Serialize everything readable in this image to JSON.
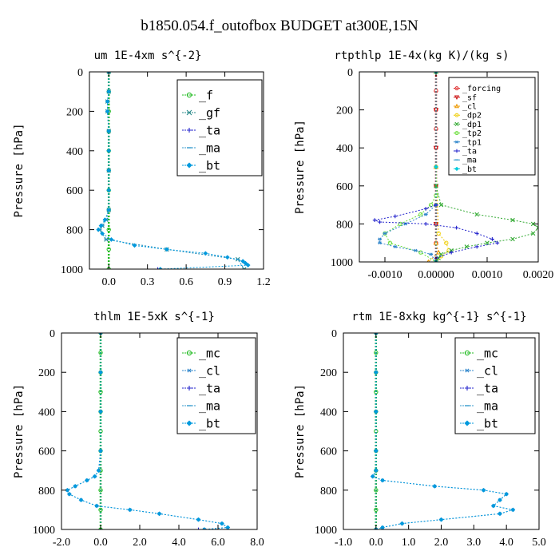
{
  "figure": {
    "title": "b1850.054.f_outofbox  BUDGET at300E,15N"
  },
  "chart_data": [
    {
      "type": "line",
      "title": "um  1E-4xm s^{-2}",
      "xlabel": "",
      "ylabel": "Pressure [hPa]",
      "xlim": [
        -0.15,
        1.2
      ],
      "ylim": [
        1000,
        0
      ],
      "xticks": [
        0.0,
        0.3,
        0.6,
        0.9,
        1.2
      ],
      "xtick_labels": [
        "0.0",
        "0.3",
        "0.6",
        "0.9",
        "1.2"
      ],
      "yticks": [
        0,
        200,
        400,
        600,
        800,
        1000
      ],
      "ytick_labels": [
        "0",
        "200",
        "400",
        "600",
        "800",
        "1000"
      ],
      "legend": {
        "placement": "top-right",
        "font_size": 15
      },
      "series": [
        {
          "name": "_f",
          "color": "#22bb22",
          "marker": "circle",
          "y": [
            0,
            100,
            200,
            300,
            400,
            500,
            600,
            700,
            800,
            900,
            1000
          ],
          "x": [
            0,
            0,
            0,
            0,
            0,
            0,
            0,
            0,
            0,
            0,
            0
          ]
        },
        {
          "name": "_gf",
          "color": "#2a8a8a",
          "marker": "x",
          "y": [
            0,
            100,
            150,
            200,
            300,
            500,
            700,
            750,
            780,
            800,
            850,
            900,
            950,
            1000
          ],
          "x": [
            0,
            0,
            -0.01,
            -0.01,
            0,
            0,
            0,
            -0.02,
            -0.05,
            -0.07,
            -0.02,
            0.45,
            1.0,
            1.05
          ]
        },
        {
          "name": "_ta",
          "color": "#2222cc",
          "marker": "plus",
          "y": [
            1000
          ],
          "x": [
            0.38
          ]
        },
        {
          "name": "_ma",
          "color": "#3399cc",
          "marker": "dash",
          "y": [
            0,
            100,
            150,
            200,
            300,
            500,
            700,
            750,
            780,
            800,
            850,
            900,
            950,
            1000
          ],
          "x": [
            0,
            0,
            -0.01,
            -0.01,
            0,
            0,
            0,
            -0.02,
            -0.05,
            -0.07,
            -0.02,
            0.45,
            1.0,
            1.05
          ]
        },
        {
          "name": "_bt",
          "color": "#0099dd",
          "marker": "diamond",
          "y": [
            0,
            100,
            150,
            200,
            300,
            400,
            500,
            600,
            700,
            750,
            780,
            800,
            820,
            850,
            880,
            900,
            920,
            940,
            960,
            970,
            980,
            1000
          ],
          "x": [
            0,
            0,
            -0.01,
            -0.01,
            0,
            0,
            0,
            0,
            0,
            -0.03,
            -0.06,
            -0.08,
            -0.05,
            0.02,
            0.2,
            0.45,
            0.75,
            0.92,
            1.04,
            1.06,
            1.08,
            0.4
          ]
        }
      ]
    },
    {
      "type": "line",
      "title": "rtpthlp  1E-4x(kg K)/(kg s)",
      "xlabel": "",
      "ylabel": "Pressure [hPa]",
      "xlim": [
        -0.0015,
        0.002
      ],
      "ylim": [
        1000,
        0
      ],
      "xticks": [
        -0.001,
        0.0,
        0.001,
        0.002
      ],
      "xtick_labels": [
        "-0.0010",
        "0.00000",
        "0.0010",
        "0.0020"
      ],
      "yticks": [
        0,
        200,
        400,
        600,
        800,
        1000
      ],
      "ytick_labels": [
        "0",
        "200",
        "400",
        "600",
        "800",
        "1000"
      ],
      "legend": {
        "placement": "top-right",
        "font_size": 10
      },
      "series": [
        {
          "name": "_forcing",
          "color": "#dd2222",
          "marker": "circle",
          "y": [
            0,
            100,
            200,
            300,
            400,
            500,
            600,
            700,
            800,
            900,
            1000
          ],
          "x": [
            0,
            0,
            0,
            0,
            0,
            0,
            0,
            0,
            0,
            0,
            0
          ]
        },
        {
          "name": "_sf",
          "color": "#cc1111",
          "marker": "triangle-down",
          "y": [
            0,
            200,
            400,
            600,
            800,
            1000
          ],
          "x": [
            0,
            0,
            0,
            0,
            0,
            0
          ]
        },
        {
          "name": "_cl",
          "color": "#ee9900",
          "marker": "triangle",
          "y": [
            0,
            500,
            900,
            950,
            1000
          ],
          "x": [
            0,
            0,
            0,
            5e-05,
            -0.00015
          ]
        },
        {
          "name": "_dp2",
          "color": "#eecc00",
          "marker": "circle",
          "y": [
            0,
            500,
            850,
            900,
            940,
            970,
            1000
          ],
          "x": [
            0,
            0,
            5e-05,
            0.0002,
            0.00025,
            0.0001,
            0
          ]
        },
        {
          "name": "_dp1",
          "color": "#33aa33",
          "marker": "x",
          "y": [
            0,
            600,
            700,
            750,
            780,
            800,
            820,
            850,
            880,
            900,
            920,
            940,
            960,
            980,
            1000
          ],
          "x": [
            0,
            0,
            0.0001,
            0.0008,
            0.0015,
            0.0019,
            0.002,
            0.0019,
            0.0015,
            0.001,
            0.0006,
            0.0003,
            0.0001,
            5e-05,
            0
          ]
        },
        {
          "name": "_tp2",
          "color": "#66dd33",
          "marker": "circle",
          "y": [
            0,
            650,
            700,
            750,
            800,
            850,
            900,
            950,
            1000
          ],
          "x": [
            0,
            0,
            -0.0001,
            -0.0003,
            -0.0007,
            -0.001,
            -0.0009,
            -0.0003,
            0
          ]
        },
        {
          "name": "_tp1",
          "color": "#3388cc",
          "marker": "asterisk",
          "y": [
            0,
            700,
            750,
            800,
            850,
            880,
            900,
            920,
            940,
            960,
            1000
          ],
          "x": [
            0,
            0,
            -0.0002,
            -0.0006,
            -0.001,
            -0.0011,
            -0.0011,
            -0.0008,
            -0.0004,
            -0.0001,
            0
          ]
        },
        {
          "name": "_ta",
          "color": "#2222cc",
          "marker": "plus",
          "y": [
            0,
            700,
            720,
            760,
            780,
            790,
            800,
            820,
            850,
            880,
            900,
            920,
            950,
            980,
            1000
          ],
          "x": [
            0,
            0,
            -0.0002,
            -0.0008,
            -0.0012,
            -0.0011,
            -0.0002,
            0.0004,
            0.0008,
            0.0011,
            0.0012,
            0.0008,
            0.0003,
            0,
            0
          ]
        },
        {
          "name": "_ma",
          "color": "#3399cc",
          "marker": "dash",
          "y": [
            0,
            1000
          ],
          "x": [
            0,
            0
          ]
        },
        {
          "name": "_bt",
          "color": "#00ccdd",
          "marker": "diamond",
          "y": [
            0,
            500,
            1000
          ],
          "x": [
            0,
            0,
            0
          ]
        }
      ]
    },
    {
      "type": "line",
      "title": "thlm  1E-5xK s^{-1}",
      "xlabel": "",
      "ylabel": "Pressure [hPa]",
      "xlim": [
        -2.0,
        8.0
      ],
      "ylim": [
        1000,
        0
      ],
      "xticks": [
        -2.0,
        0.0,
        2.0,
        4.0,
        6.0,
        8.0
      ],
      "xtick_labels": [
        "-2.0",
        "0.0",
        "2.0",
        "4.0",
        "6.0",
        "8.0"
      ],
      "yticks": [
        0,
        200,
        400,
        600,
        800,
        1000
      ],
      "ytick_labels": [
        "0",
        "200",
        "400",
        "600",
        "800",
        "1000"
      ],
      "legend": {
        "placement": "top-right",
        "font_size": 15
      },
      "series": [
        {
          "name": "_mc",
          "color": "#22bb22",
          "marker": "circle",
          "y": [
            0,
            100,
            200,
            300,
            400,
            500,
            600,
            700,
            800,
            900,
            1000
          ],
          "x": [
            0,
            0,
            0,
            0,
            0,
            0,
            0,
            0,
            0,
            0,
            0
          ]
        },
        {
          "name": "_cl",
          "color": "#3388cc",
          "marker": "asterisk",
          "y": [
            0,
            200,
            400,
            600,
            700,
            730,
            750,
            780,
            800,
            820,
            850,
            880,
            900,
            920,
            950,
            970,
            990,
            1000
          ],
          "x": [
            0,
            0,
            0,
            0,
            -0.1,
            -0.3,
            -0.7,
            -1.3,
            -1.7,
            -1.6,
            -1.0,
            -0.2,
            1.5,
            3.0,
            5.0,
            6.2,
            6.5,
            5.3
          ]
        },
        {
          "name": "_ta",
          "color": "#2222cc",
          "marker": "plus",
          "y": [
            1000
          ],
          "x": [
            5.0
          ]
        },
        {
          "name": "_ma",
          "color": "#3399cc",
          "marker": "dash",
          "y": [
            0,
            1000
          ],
          "x": [
            0,
            0
          ]
        },
        {
          "name": "_bt",
          "color": "#0099dd",
          "marker": "diamond",
          "y": [
            0,
            200,
            400,
            600,
            700,
            730,
            750,
            780,
            800,
            820,
            850,
            880,
            900,
            920,
            950,
            970,
            990,
            1000
          ],
          "x": [
            0,
            0,
            0,
            0,
            -0.1,
            -0.3,
            -0.7,
            -1.3,
            -1.7,
            -1.6,
            -1.0,
            -0.2,
            1.5,
            3.0,
            5.0,
            6.2,
            6.5,
            5.3
          ]
        }
      ]
    },
    {
      "type": "line",
      "title": "rtm  1E-8xkg kg^{-1} s^{-1}",
      "xlabel": "",
      "ylabel": "Pressure [hPa]",
      "xlim": [
        -1.0,
        5.0
      ],
      "ylim": [
        1000,
        0
      ],
      "xticks": [
        -1.0,
        0.0,
        1.0,
        2.0,
        3.0,
        4.0,
        5.0
      ],
      "xtick_labels": [
        "-1.0",
        "0.0",
        "1.0",
        "2.0",
        "3.0",
        "4.0",
        "5.0"
      ],
      "yticks": [
        0,
        200,
        400,
        600,
        800,
        1000
      ],
      "ytick_labels": [
        "0",
        "200",
        "400",
        "600",
        "800",
        "1000"
      ],
      "legend": {
        "placement": "top-right",
        "font_size": 15
      },
      "series": [
        {
          "name": "_mc",
          "color": "#22bb22",
          "marker": "circle",
          "y": [
            0,
            100,
            200,
            300,
            400,
            500,
            600,
            700,
            800,
            900,
            1000
          ],
          "x": [
            0,
            0,
            0,
            0,
            0,
            0,
            0,
            0,
            0,
            0,
            0
          ]
        },
        {
          "name": "_cl",
          "color": "#3388cc",
          "marker": "asterisk",
          "y": [
            0,
            200,
            400,
            600,
            700,
            730,
            750,
            780,
            800,
            820,
            850,
            880,
            900,
            920,
            950,
            970,
            990,
            1000
          ],
          "x": [
            0,
            0,
            0,
            0,
            0,
            -0.1,
            0.2,
            1.8,
            3.3,
            4.0,
            3.8,
            3.6,
            4.2,
            3.8,
            2.0,
            0.8,
            0.2,
            0
          ]
        },
        {
          "name": "_ta",
          "color": "#2222cc",
          "marker": "plus",
          "y": [
            1000
          ],
          "x": [
            0
          ]
        },
        {
          "name": "_ma",
          "color": "#3399cc",
          "marker": "dash",
          "y": [
            0,
            1000
          ],
          "x": [
            0,
            0
          ]
        },
        {
          "name": "_bt",
          "color": "#0099dd",
          "marker": "diamond",
          "y": [
            0,
            200,
            400,
            600,
            700,
            730,
            750,
            780,
            800,
            820,
            850,
            880,
            900,
            920,
            950,
            970,
            990,
            1000
          ],
          "x": [
            0,
            0,
            0,
            0,
            0,
            -0.1,
            0.2,
            1.8,
            3.3,
            4.0,
            3.8,
            3.6,
            4.2,
            3.8,
            2.0,
            0.8,
            0.2,
            0
          ]
        }
      ]
    }
  ]
}
